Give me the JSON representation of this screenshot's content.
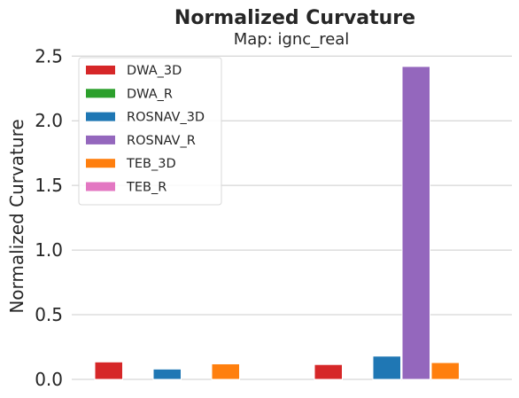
{
  "chart_data": {
    "type": "bar",
    "title": "Normalized Curvature",
    "subtitle": "Map: ignc_real",
    "xlabel": "",
    "ylabel": "Normalized Curvature",
    "ylim": [
      0,
      2.55
    ],
    "yticks": [
      "0.0",
      "0.5",
      "1.0",
      "1.5",
      "2.0",
      "2.5"
    ],
    "ytick_values": [
      0,
      0.5,
      1.0,
      1.5,
      2.0,
      2.5
    ],
    "grid": true,
    "legend_position": "top-left",
    "groups": 2,
    "series": [
      {
        "name": "DWA_3D",
        "color": "#d62728",
        "values": [
          0.135,
          0.115
        ]
      },
      {
        "name": "DWA_R",
        "color": "#2ca02c",
        "values": [
          null,
          null
        ]
      },
      {
        "name": "ROSNAV_3D",
        "color": "#1f77b4",
        "values": [
          0.08,
          0.18
        ]
      },
      {
        "name": "ROSNAV_R",
        "color": "#9467bd",
        "values": [
          null,
          2.42
        ]
      },
      {
        "name": "TEB_3D",
        "color": "#ff7f0e",
        "values": [
          0.12,
          0.13
        ]
      },
      {
        "name": "TEB_R",
        "color": "#e377c2",
        "values": [
          null,
          null
        ]
      }
    ]
  }
}
